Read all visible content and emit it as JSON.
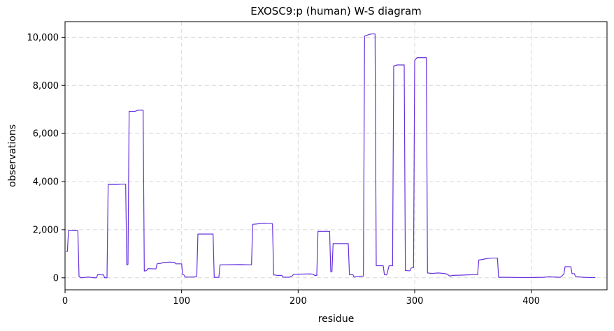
{
  "chart_data": {
    "type": "line",
    "title": "EXOSC9:p (human) W-S diagram",
    "xlabel": "residue",
    "ylabel": "observations",
    "xlim": [
      0,
      465
    ],
    "ylim": [
      -500,
      10650
    ],
    "grid": true,
    "xticks": [
      {
        "value": 0,
        "label": "0"
      },
      {
        "value": 100,
        "label": "100"
      },
      {
        "value": 200,
        "label": "200"
      },
      {
        "value": 300,
        "label": "300"
      },
      {
        "value": 400,
        "label": "400"
      }
    ],
    "yticks": [
      {
        "value": 0,
        "label": "0"
      },
      {
        "value": 2000,
        "label": "2,000"
      },
      {
        "value": 4000,
        "label": "4,000"
      },
      {
        "value": 6000,
        "label": "6,000"
      },
      {
        "value": 8000,
        "label": "8,000"
      },
      {
        "value": 10000,
        "label": "10,000"
      }
    ],
    "series": [
      {
        "color": "#6633dd",
        "points": [
          [
            1,
            1080
          ],
          [
            2,
            1100
          ],
          [
            3,
            1960
          ],
          [
            4,
            1960
          ],
          [
            11,
            1960
          ],
          [
            12,
            50
          ],
          [
            14,
            0
          ],
          [
            16,
            10
          ],
          [
            20,
            30
          ],
          [
            25,
            0
          ],
          [
            27,
            0
          ],
          [
            28,
            130
          ],
          [
            33,
            120
          ],
          [
            34,
            0
          ],
          [
            36,
            0
          ],
          [
            37,
            3880
          ],
          [
            45,
            3880
          ],
          [
            48,
            3890
          ],
          [
            52,
            3890
          ],
          [
            53,
            530
          ],
          [
            54,
            560
          ],
          [
            55,
            6920
          ],
          [
            60,
            6920
          ],
          [
            63,
            6970
          ],
          [
            67,
            6970
          ],
          [
            68,
            280
          ],
          [
            70,
            300
          ],
          [
            71,
            380
          ],
          [
            78,
            370
          ],
          [
            79,
            580
          ],
          [
            82,
            600
          ],
          [
            85,
            640
          ],
          [
            90,
            650
          ],
          [
            94,
            640
          ],
          [
            95,
            580
          ],
          [
            100,
            580
          ],
          [
            101,
            130
          ],
          [
            102,
            120
          ],
          [
            103,
            30
          ],
          [
            110,
            30
          ],
          [
            113,
            50
          ],
          [
            114,
            1820
          ],
          [
            120,
            1820
          ],
          [
            127,
            1820
          ],
          [
            128,
            20
          ],
          [
            132,
            20
          ],
          [
            133,
            540
          ],
          [
            150,
            550
          ],
          [
            160,
            540
          ],
          [
            161,
            2220
          ],
          [
            165,
            2240
          ],
          [
            170,
            2270
          ],
          [
            175,
            2260
          ],
          [
            178,
            2250
          ],
          [
            179,
            120
          ],
          [
            182,
            100
          ],
          [
            186,
            100
          ],
          [
            187,
            30
          ],
          [
            192,
            20
          ],
          [
            195,
            80
          ],
          [
            196,
            140
          ],
          [
            200,
            150
          ],
          [
            210,
            160
          ],
          [
            213,
            150
          ],
          [
            214,
            100
          ],
          [
            216,
            100
          ],
          [
            217,
            1930
          ],
          [
            225,
            1930
          ],
          [
            227,
            1930
          ],
          [
            228,
            250
          ],
          [
            229,
            250
          ],
          [
            230,
            1420
          ],
          [
            238,
            1420
          ],
          [
            243,
            1420
          ],
          [
            244,
            130
          ],
          [
            247,
            130
          ],
          [
            248,
            30
          ],
          [
            252,
            60
          ],
          [
            256,
            70
          ],
          [
            257,
            10050
          ],
          [
            260,
            10100
          ],
          [
            263,
            10140
          ],
          [
            266,
            10140
          ],
          [
            267,
            500
          ],
          [
            273,
            500
          ],
          [
            274,
            130
          ],
          [
            276,
            120
          ],
          [
            278,
            500
          ],
          [
            281,
            500
          ],
          [
            282,
            8810
          ],
          [
            285,
            8850
          ],
          [
            291,
            8850
          ],
          [
            292,
            300
          ],
          [
            295,
            290
          ],
          [
            296,
            290
          ],
          [
            297,
            410
          ],
          [
            299,
            420
          ],
          [
            300,
            9030
          ],
          [
            302,
            9150
          ],
          [
            310,
            9150
          ],
          [
            311,
            200
          ],
          [
            315,
            180
          ],
          [
            320,
            200
          ],
          [
            325,
            180
          ],
          [
            327,
            160
          ],
          [
            328,
            150
          ],
          [
            330,
            70
          ],
          [
            333,
            100
          ],
          [
            340,
            110
          ],
          [
            345,
            120
          ],
          [
            352,
            130
          ],
          [
            354,
            130
          ],
          [
            355,
            740
          ],
          [
            358,
            760
          ],
          [
            362,
            800
          ],
          [
            366,
            820
          ],
          [
            371,
            820
          ],
          [
            372,
            20
          ],
          [
            380,
            20
          ],
          [
            390,
            10
          ],
          [
            400,
            10
          ],
          [
            410,
            20
          ],
          [
            415,
            40
          ],
          [
            420,
            30
          ],
          [
            425,
            20
          ],
          [
            428,
            150
          ],
          [
            429,
            460
          ],
          [
            434,
            460
          ],
          [
            435,
            170
          ],
          [
            437,
            170
          ],
          [
            438,
            50
          ],
          [
            440,
            40
          ],
          [
            445,
            20
          ],
          [
            450,
            10
          ],
          [
            455,
            10
          ]
        ]
      }
    ]
  }
}
